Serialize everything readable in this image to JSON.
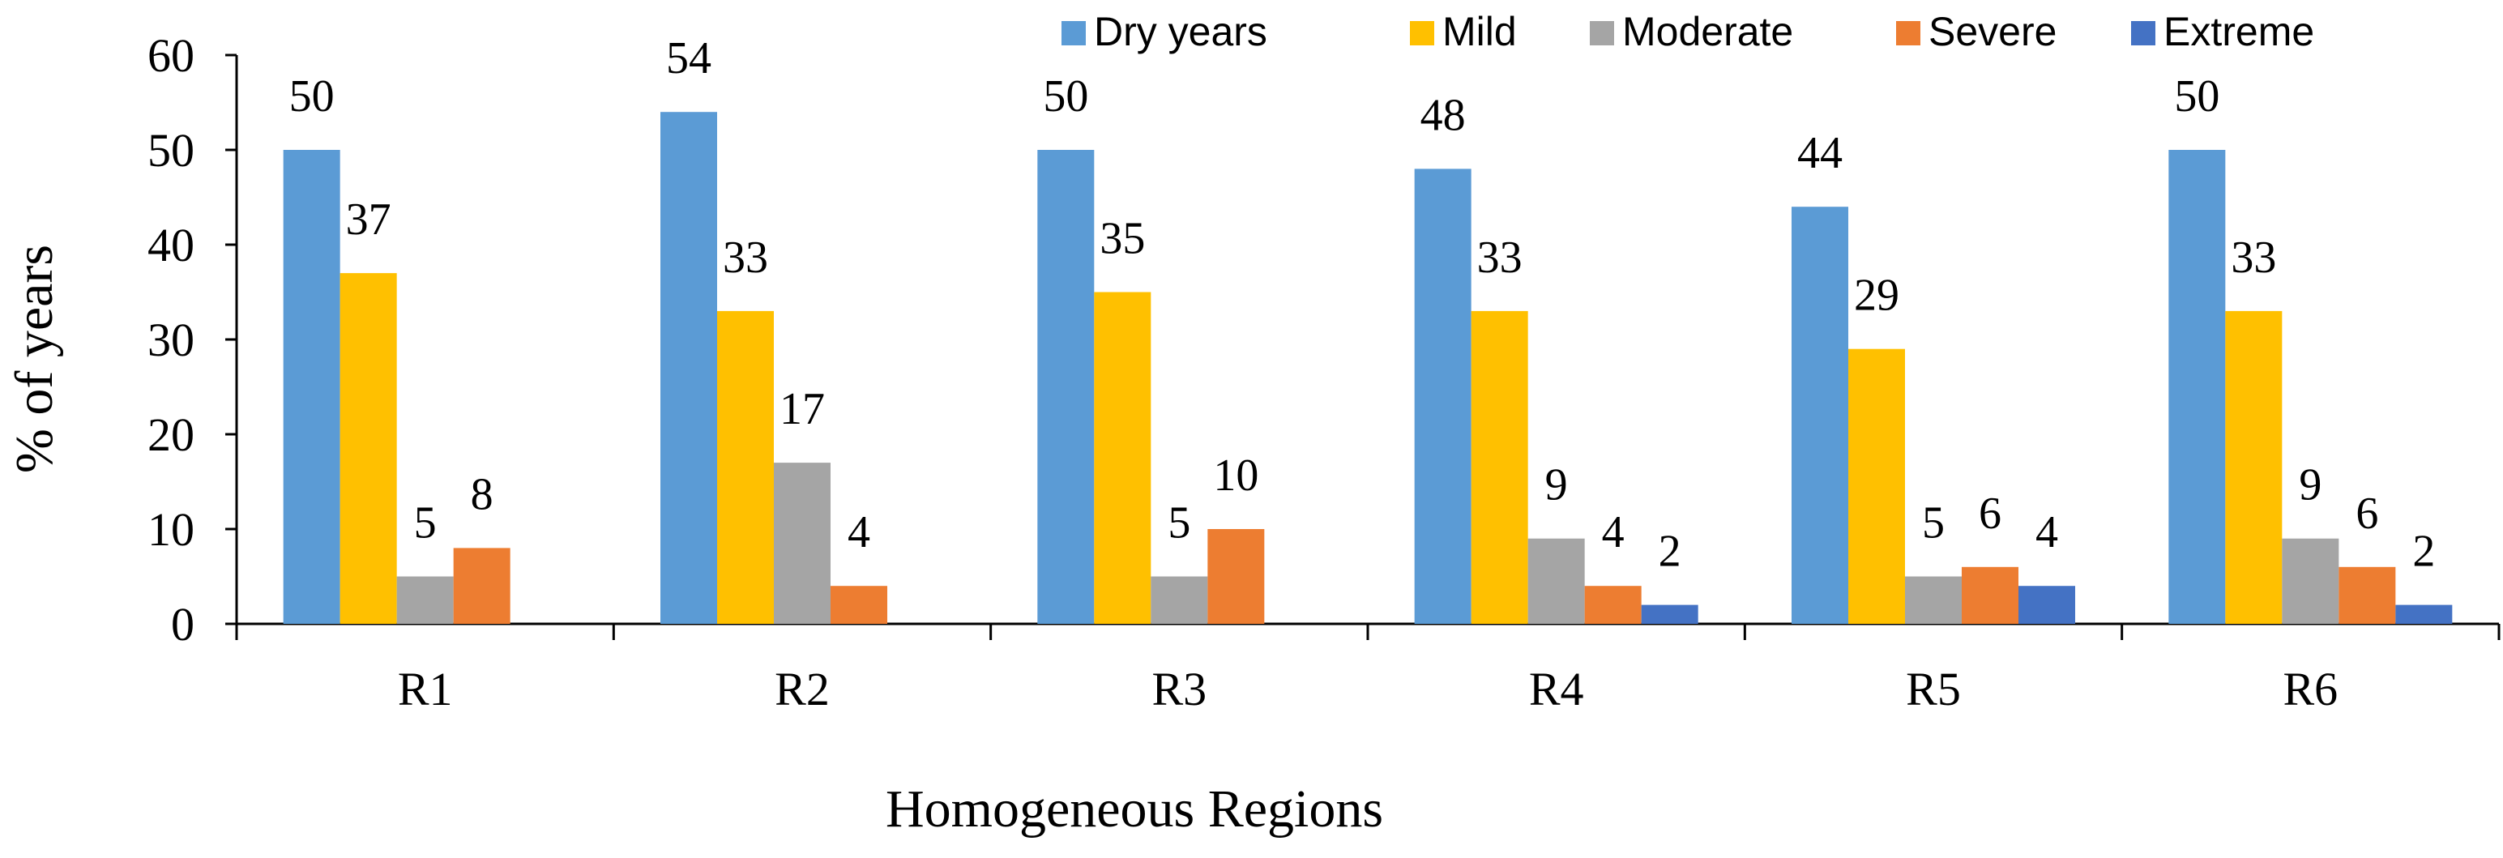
{
  "chart_data": {
    "type": "bar",
    "title": "",
    "xlabel": "Homogeneous Regions",
    "ylabel": "% of years",
    "ylim": [
      0,
      60
    ],
    "yticks": [
      0,
      10,
      20,
      30,
      40,
      50,
      60
    ],
    "grid": false,
    "legend_position": "top-right",
    "categories": [
      "R1",
      "R2",
      "R3",
      "R4",
      "R5",
      "R6"
    ],
    "series": [
      {
        "name": "Dry years",
        "color": "#5B9BD5",
        "values": [
          50,
          54,
          50,
          48,
          44,
          50
        ],
        "labels": [
          "50",
          "54",
          "50",
          "48",
          "44",
          "50"
        ]
      },
      {
        "name": "Mild",
        "color": "#FFC000",
        "values": [
          37,
          33,
          35,
          33,
          29,
          33
        ],
        "labels": [
          "37",
          "33",
          "35",
          "33",
          "29",
          "33"
        ]
      },
      {
        "name": "Moderate",
        "color": "#A5A5A5",
        "values": [
          5,
          17,
          5,
          9,
          5,
          9
        ],
        "labels": [
          "5",
          "17",
          "5",
          "9",
          "5",
          "9"
        ]
      },
      {
        "name": "Severe",
        "color": "#ED7D31",
        "values": [
          8,
          4,
          10,
          4,
          6,
          6
        ],
        "labels": [
          "8",
          "4",
          "10",
          "4",
          "6",
          "6"
        ]
      },
      {
        "name": "Extreme",
        "color": "#4472C4",
        "values": [
          0,
          0,
          0,
          2,
          4,
          2
        ],
        "labels": [
          "",
          "",
          "",
          "2",
          "4",
          "2"
        ]
      }
    ]
  }
}
